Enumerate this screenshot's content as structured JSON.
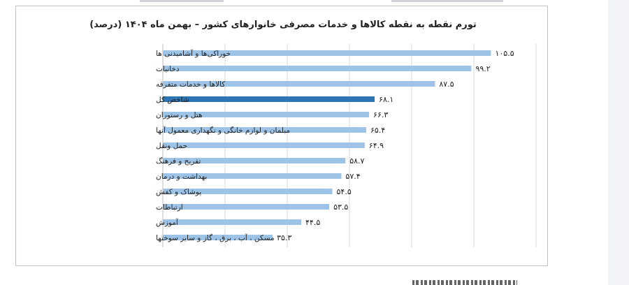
{
  "chart_data": {
    "type": "bar",
    "orientation": "horizontal",
    "title": "تورم نقطه به نقطه کالاها و خدمات مصرفی خانوارهای کشور – بهمن ماه ۱۴۰۴ (درصد)",
    "categories": [
      "خوراکی‌ها و آشامیدنی ها",
      "دخانیات",
      "کالاها و خدمات متفرقه",
      "شاخص کل",
      "هتل و رستوران",
      "مبلمان و لوازم خانگی و نگهداری معمول آنها",
      "حمل ونقل",
      "تفریح و فرهنگ",
      "بهداشت و درمان",
      "پوشاک و کفش",
      "ارتباطات",
      "آموزش",
      "مسکن ، آب ، برق ، گاز و سایر سوختها"
    ],
    "values": [
      105.5,
      99.2,
      87.5,
      68.1,
      66.3,
      65.4,
      64.9,
      58.7,
      57.4,
      54.5,
      53.5,
      44.5,
      35.3
    ],
    "value_labels": [
      "۱۰۵.۵",
      "۹۹.۲",
      "۸۷.۵",
      "۶۸.۱",
      "۶۶.۳",
      "۶۵.۴",
      "۶۴.۹",
      "۵۸.۷",
      "۵۷.۴",
      "۵۴.۵",
      "۵۳.۵",
      "۴۴.۵",
      "۳۵.۳"
    ],
    "highlight_category": "شاخص کل",
    "xlim": [
      0,
      120
    ],
    "grid": true,
    "legend": "none",
    "colors": {
      "bar": "#9dc3e6",
      "highlight": "#2e75b6",
      "grid": "#d9d9d9",
      "axis": "#bfbfbf",
      "text": "#222222"
    }
  }
}
